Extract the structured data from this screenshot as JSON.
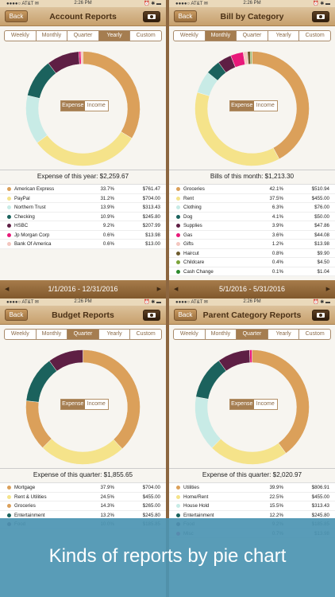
{
  "status": {
    "carrier": "●●●●○ AT&T ✉",
    "time": "2:26 PM",
    "right": "⏰ ✱ ▬"
  },
  "back_label": "Back",
  "colors": {
    "American Express": "#dba05a",
    "PayPal": "#f5e38a",
    "Northern Trust": "#c8ebe6",
    "Checking": "#1b625d",
    "HSBC": "#5e1f44",
    "Jp Morgan Corp": "#e8197a",
    "Bank Of America": "#f3c7c0",
    "Groceries": "#dba05a",
    "Rent": "#f5e38a",
    "Clothing": "#c8ebe6",
    "Dog": "#1b625d",
    "Supplies": "#5e1f44",
    "Gas": "#e8197a",
    "Gifts": "#f3c7c0",
    "Haircut": "#6e5c2e",
    "Childcare": "#7ca33a",
    "Cash Change": "#2d8a2d",
    "Mortgage": "#dba05a",
    "Rent & Utilities": "#f5e38a",
    "Entertainment": "#1b625d",
    "Food": "#5e1f44",
    "Utilities": "#dba05a",
    "Home/Rent": "#f5e38a",
    "House Hold": "#c8ebe6",
    "Misc": "#e8197a"
  },
  "panels": [
    {
      "title": "Account Reports",
      "tabs": [
        "Weekly",
        "Monthly",
        "Quarter",
        "Yearly",
        "Custom"
      ],
      "selected_tab": 3,
      "toggle": [
        "Expense",
        "Income"
      ],
      "total": "Expense of this year: $2,259.67",
      "date_range": "1/1/2016 - 12/31/2016",
      "chart_data": {
        "type": "pie",
        "slices": [
          {
            "label": "American Express",
            "value": 33.7
          },
          {
            "label": "PayPal",
            "value": 31.2
          },
          {
            "label": "Northern Trust",
            "value": 13.9
          },
          {
            "label": "Checking",
            "value": 10.9
          },
          {
            "label": "HSBC",
            "value": 9.2
          },
          {
            "label": "Jp Morgan Corp",
            "value": 0.6
          },
          {
            "label": "Bank Of America",
            "value": 0.6
          }
        ]
      },
      "rows": [
        {
          "name": "American Express",
          "pct": "33.7%",
          "amt": "$761.47"
        },
        {
          "name": "PayPal",
          "pct": "31.2%",
          "amt": "$704.00"
        },
        {
          "name": "Northern Trust",
          "pct": "13.9%",
          "amt": "$313.43"
        },
        {
          "name": "Checking",
          "pct": "10.9%",
          "amt": "$245.80"
        },
        {
          "name": "HSBC",
          "pct": "9.2%",
          "amt": "$207.99"
        },
        {
          "name": "Jp Morgan Corp",
          "pct": "0.6%",
          "amt": "$13.98"
        },
        {
          "name": "Bank Of America",
          "pct": "0.6%",
          "amt": "$13.00"
        }
      ]
    },
    {
      "title": "Bill by Category",
      "tabs": [
        "Weekly",
        "Monthly",
        "Quarter",
        "Yearly",
        "Custom"
      ],
      "selected_tab": 1,
      "toggle": [
        "Expense",
        "Income"
      ],
      "total": "Bills of this month: $1,213.30",
      "date_range": "5/1/2016 - 5/31/2016",
      "chart_data": {
        "type": "pie",
        "slices": [
          {
            "label": "Groceries",
            "value": 42.1
          },
          {
            "label": "Rent",
            "value": 37.5
          },
          {
            "label": "Clothing",
            "value": 6.3
          },
          {
            "label": "Dog",
            "value": 4.1
          },
          {
            "label": "Supplies",
            "value": 3.9
          },
          {
            "label": "Gas",
            "value": 3.6
          },
          {
            "label": "Gifts",
            "value": 1.2
          },
          {
            "label": "Haircut",
            "value": 0.8
          },
          {
            "label": "Childcare",
            "value": 0.4
          },
          {
            "label": "Cash Change",
            "value": 0.1
          }
        ]
      },
      "rows": [
        {
          "name": "Groceries",
          "pct": "42.1%",
          "amt": "$510.94"
        },
        {
          "name": "Rent",
          "pct": "37.5%",
          "amt": "$455.00"
        },
        {
          "name": "Clothing",
          "pct": "6.3%",
          "amt": "$76.00"
        },
        {
          "name": "Dog",
          "pct": "4.1%",
          "amt": "$50.00"
        },
        {
          "name": "Supplies",
          "pct": "3.9%",
          "amt": "$47.86"
        },
        {
          "name": "Gas",
          "pct": "3.6%",
          "amt": "$44.08"
        },
        {
          "name": "Gifts",
          "pct": "1.2%",
          "amt": "$13.98"
        },
        {
          "name": "Haircut",
          "pct": "0.8%",
          "amt": "$9.90"
        },
        {
          "name": "Childcare",
          "pct": "0.4%",
          "amt": "$4.50"
        },
        {
          "name": "Cash Change",
          "pct": "0.1%",
          "amt": "$1.04"
        }
      ]
    },
    {
      "title": "Budget Reports",
      "tabs": [
        "Weekly",
        "Monthly",
        "Quarter",
        "Yearly",
        "Custom"
      ],
      "selected_tab": 2,
      "toggle": [
        "Expense",
        "Income"
      ],
      "total": "Expense of this quarter: $1,855.65",
      "chart_data": {
        "type": "pie",
        "slices": [
          {
            "label": "Mortgage",
            "value": 37.9
          },
          {
            "label": "Rent & Utilities",
            "value": 24.5
          },
          {
            "label": "Groceries",
            "value": 14.3
          },
          {
            "label": "Entertainment",
            "value": 13.2
          },
          {
            "label": "Food",
            "value": 10.0
          }
        ]
      },
      "rows": [
        {
          "name": "Mortgage",
          "pct": "37.9%",
          "amt": "$704.00"
        },
        {
          "name": "Rent & Utilities",
          "pct": "24.5%",
          "amt": "$455.00"
        },
        {
          "name": "Groceries",
          "pct": "14.3%",
          "amt": "$265.00"
        },
        {
          "name": "Entertainment",
          "pct": "13.2%",
          "amt": "$245.80"
        },
        {
          "name": "Food",
          "pct": "10.0%",
          "amt": "$185.85"
        }
      ]
    },
    {
      "title": "Parent Category Reports",
      "tabs": [
        "Weekly",
        "Monthly",
        "Quarter",
        "Yearly",
        "Custom"
      ],
      "selected_tab": 2,
      "toggle": [
        "Expense",
        "Income"
      ],
      "total": "Expense of this quarter: $2,020.97",
      "chart_data": {
        "type": "pie",
        "slices": [
          {
            "label": "Utilities",
            "value": 39.9
          },
          {
            "label": "Home/Rent",
            "value": 22.5
          },
          {
            "label": "House Hold",
            "value": 15.5
          },
          {
            "label": "Entertainment",
            "value": 12.2
          },
          {
            "label": "Food",
            "value": 9.2
          },
          {
            "label": "Misc",
            "value": 0.7
          }
        ]
      },
      "rows": [
        {
          "name": "Utilities",
          "pct": "39.9%",
          "amt": "$806.91"
        },
        {
          "name": "Home/Rent",
          "pct": "22.5%",
          "amt": "$455.00"
        },
        {
          "name": "House Hold",
          "pct": "15.5%",
          "amt": "$313.43"
        },
        {
          "name": "Entertainment",
          "pct": "12.2%",
          "amt": "$245.80"
        },
        {
          "name": "Food",
          "pct": "9.2%",
          "amt": "$185.85"
        },
        {
          "name": "Misc",
          "pct": "0.7%",
          "amt": "$13.98"
        }
      ]
    }
  ],
  "banner": {
    "text": "Kinds of reports by pie chart"
  }
}
